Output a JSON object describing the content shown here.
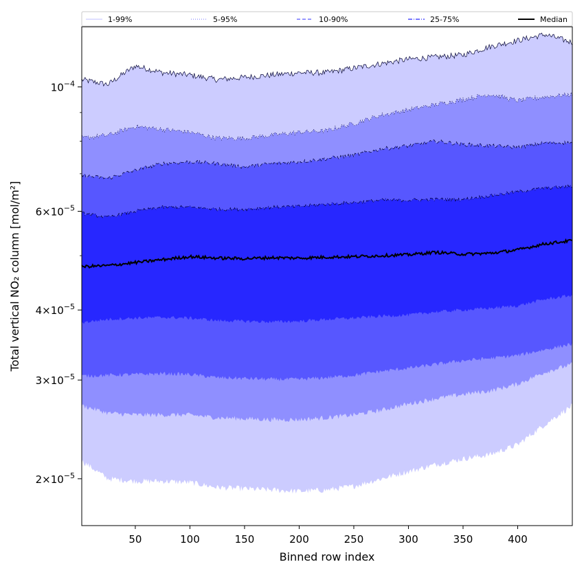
{
  "chart_data": {
    "type": "area",
    "xlabel": "Binned row index",
    "ylabel": "Total vertical NO₂ column [mol/m²]",
    "xlim": [
      1,
      450
    ],
    "ylim": [
      1.65e-05,
      0.000128
    ],
    "y_scale": "log",
    "x_ticks": [
      50,
      100,
      150,
      200,
      250,
      300,
      350,
      400
    ],
    "y_ticks": [
      {
        "value": 2e-05,
        "mantissa": "2",
        "exp": "−5"
      },
      {
        "value": 3e-05,
        "mantissa": "3",
        "exp": "−5"
      },
      {
        "value": 4e-05,
        "mantissa": "4",
        "exp": "−5"
      },
      {
        "value": 6e-05,
        "mantissa": "6",
        "exp": "−5"
      },
      {
        "value": 0.0001,
        "mantissa": "",
        "exp": "−4"
      }
    ],
    "x": [
      1,
      25,
      50,
      75,
      100,
      125,
      150,
      175,
      200,
      225,
      250,
      275,
      300,
      325,
      350,
      375,
      400,
      425,
      450
    ],
    "bands": [
      {
        "name": "1-99%",
        "color": "#ccccff",
        "line_style": "solid",
        "lower": [
          2.15e-05,
          2e-05,
          1.98e-05,
          1.98e-05,
          1.97e-05,
          1.93e-05,
          1.92e-05,
          1.91e-05,
          1.9e-05,
          1.91e-05,
          1.94e-05,
          2e-05,
          2.06e-05,
          2.12e-05,
          2.17e-05,
          2.21e-05,
          2.3e-05,
          2.5e-05,
          2.7e-05
        ],
        "upper": [
          0.000103,
          0.000101,
          0.000109,
          0.000106,
          0.000105,
          0.000103,
          0.000104,
          0.000105,
          0.000106,
          0.000106,
          0.000108,
          0.00011,
          0.000112,
          0.000113,
          0.000114,
          0.000118,
          0.000121,
          0.000124,
          0.00012
        ]
      },
      {
        "name": "5-95%",
        "color": "#8f8fff",
        "line_style": "dotted",
        "lower": [
          2.7e-05,
          2.62e-05,
          2.6e-05,
          2.6e-05,
          2.6e-05,
          2.57e-05,
          2.56e-05,
          2.55e-05,
          2.55e-05,
          2.57e-05,
          2.6e-05,
          2.65e-05,
          2.72e-05,
          2.78e-05,
          2.83e-05,
          2.87e-05,
          2.95e-05,
          3.1e-05,
          3.2e-05
        ],
        "upper": [
          8.1e-05,
          8.2e-05,
          8.5e-05,
          8.4e-05,
          8.3e-05,
          8.1e-05,
          8.1e-05,
          8.2e-05,
          8.3e-05,
          8.35e-05,
          8.6e-05,
          8.9e-05,
          9.1e-05,
          9.3e-05,
          9.5e-05,
          9.7e-05,
          9.45e-05,
          9.6e-05,
          9.7e-05
        ]
      },
      {
        "name": "10-90%",
        "color": "#5757ff",
        "line_style": "dashed",
        "lower": [
          3.05e-05,
          3.06e-05,
          3.07e-05,
          3.08e-05,
          3.07e-05,
          3.03e-05,
          3.02e-05,
          3.01e-05,
          3.01e-05,
          3.03e-05,
          3.06e-05,
          3.11e-05,
          3.15e-05,
          3.2e-05,
          3.25e-05,
          3.28e-05,
          3.32e-05,
          3.4e-05,
          3.48e-05
        ],
        "upper": [
          6.95e-05,
          6.87e-05,
          7.1e-05,
          7.3e-05,
          7.35e-05,
          7.3e-05,
          7.2e-05,
          7.3e-05,
          7.35e-05,
          7.45e-05,
          7.55e-05,
          7.75e-05,
          7.85e-05,
          8e-05,
          7.9e-05,
          7.85e-05,
          7.8e-05,
          7.95e-05,
          7.95e-05
        ]
      },
      {
        "name": "25-75%",
        "color": "#2727ff",
        "line_style": "dashdot",
        "lower": [
          3.8e-05,
          3.85e-05,
          3.87e-05,
          3.88e-05,
          3.87e-05,
          3.83e-05,
          3.82e-05,
          3.81e-05,
          3.82e-05,
          3.85e-05,
          3.87e-05,
          3.9e-05,
          3.92e-05,
          3.97e-05,
          4e-05,
          4.03e-05,
          4.07e-05,
          4.18e-05,
          4.25e-05
        ],
        "upper": [
          5.95e-05,
          5.85e-05,
          6e-05,
          6.1e-05,
          6.1e-05,
          6.05e-05,
          6.05e-05,
          6.1e-05,
          6.12e-05,
          6.18e-05,
          6.22e-05,
          6.28e-05,
          6.28e-05,
          6.3e-05,
          6.3e-05,
          6.4e-05,
          6.5e-05,
          6.6e-05,
          6.65e-05
        ]
      }
    ],
    "median": {
      "name": "Median",
      "color": "#000000",
      "values": [
        4.78e-05,
        4.8e-05,
        4.86e-05,
        4.92e-05,
        4.98e-05,
        4.95e-05,
        4.94e-05,
        4.96e-05,
        4.95e-05,
        4.97e-05,
        4.98e-05,
        5e-05,
        5.02e-05,
        5.07e-05,
        5.03e-05,
        5.05e-05,
        5.12e-05,
        5.25e-05,
        5.32e-05
      ]
    },
    "legend": {
      "placement": "top",
      "entries": [
        {
          "label": "1-99%",
          "color": "#ccccff",
          "line_style": "solid"
        },
        {
          "label": "5-95%",
          "color": "#8f8fff",
          "line_style": "dotted"
        },
        {
          "label": "10-90%",
          "color": "#5757ff",
          "line_style": "dashed"
        },
        {
          "label": "25-75%",
          "color": "#2727ff",
          "line_style": "dashdot"
        },
        {
          "label": "Median",
          "color": "#000000",
          "line_style": "solid"
        }
      ]
    },
    "grid": false
  }
}
